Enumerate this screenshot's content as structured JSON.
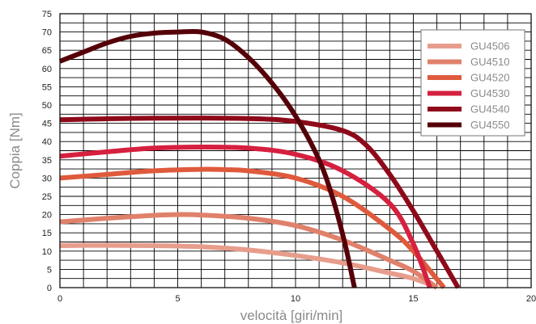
{
  "chart_data": {
    "type": "line",
    "xlabel": "velocità [giri/min]",
    "ylabel": "Coppia [Nm]",
    "xlim": [
      0,
      20
    ],
    "ylim": [
      0,
      75
    ],
    "xticks": [
      0,
      5,
      10,
      15,
      20
    ],
    "yticks": [
      0,
      5,
      10,
      15,
      20,
      25,
      30,
      35,
      40,
      45,
      50,
      55,
      60,
      65,
      70,
      75
    ],
    "grid": true,
    "legend_position": "top-right",
    "series": [
      {
        "name": "GU4506",
        "color": "#e79d8c",
        "points": [
          [
            0,
            11.5
          ],
          [
            2,
            11.6
          ],
          [
            4,
            11.5
          ],
          [
            6,
            11.2
          ],
          [
            8,
            10.3
          ],
          [
            10,
            8.8
          ],
          [
            12,
            6.8
          ],
          [
            14,
            4.0
          ],
          [
            15,
            2.5
          ],
          [
            16,
            0.2
          ]
        ]
      },
      {
        "name": "GU4510",
        "color": "#e0816c",
        "points": [
          [
            0,
            18
          ],
          [
            2,
            19
          ],
          [
            4,
            19.8
          ],
          [
            5,
            20
          ],
          [
            6,
            19.9
          ],
          [
            8,
            19
          ],
          [
            10,
            17
          ],
          [
            12,
            13
          ],
          [
            14,
            7.5
          ],
          [
            15,
            4.5
          ],
          [
            16,
            0
          ]
        ]
      },
      {
        "name": "GU4520",
        "color": "#df5a3c",
        "points": [
          [
            0,
            30
          ],
          [
            2,
            31
          ],
          [
            4,
            32
          ],
          [
            6,
            32.4
          ],
          [
            7,
            32.3
          ],
          [
            8,
            32
          ],
          [
            10,
            30
          ],
          [
            12,
            25
          ],
          [
            14,
            16
          ],
          [
            15,
            10
          ],
          [
            16.3,
            0
          ]
        ]
      },
      {
        "name": "GU4530",
        "color": "#d6203f",
        "points": [
          [
            0,
            36
          ],
          [
            2,
            37.2
          ],
          [
            4,
            38.2
          ],
          [
            6,
            38.5
          ],
          [
            8,
            38.2
          ],
          [
            10,
            36.5
          ],
          [
            12,
            32
          ],
          [
            14,
            23
          ],
          [
            15,
            12
          ],
          [
            15.7,
            0
          ]
        ]
      },
      {
        "name": "GU4540",
        "color": "#8e0a1a",
        "points": [
          [
            0,
            46
          ],
          [
            4,
            46.4
          ],
          [
            8,
            46.3
          ],
          [
            10,
            45.5
          ],
          [
            12,
            43
          ],
          [
            13,
            39
          ],
          [
            14,
            31
          ],
          [
            15,
            21
          ],
          [
            16,
            10
          ],
          [
            16.9,
            0
          ]
        ]
      },
      {
        "name": "GU4550",
        "color": "#550008",
        "points": [
          [
            0,
            62
          ],
          [
            1,
            64.5
          ],
          [
            2,
            67
          ],
          [
            3,
            68.8
          ],
          [
            4,
            69.7
          ],
          [
            5,
            70
          ],
          [
            6,
            70
          ],
          [
            7,
            68
          ],
          [
            8,
            63
          ],
          [
            9,
            56
          ],
          [
            10,
            47
          ],
          [
            11,
            35
          ],
          [
            11.6,
            24
          ],
          [
            12.1,
            12
          ],
          [
            12.5,
            0
          ]
        ]
      }
    ]
  }
}
